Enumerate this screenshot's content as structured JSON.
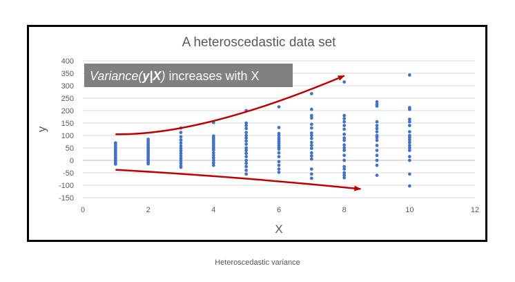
{
  "caption": "Heteroscedastic variance",
  "colors": {
    "points": "#4472C4",
    "arrows": "#C00000",
    "annotation_bg": "#808080",
    "gridlines": "#D9D9D9",
    "text": "#595959"
  },
  "annotation": {
    "italic_prefix": "Variance(",
    "bold_italic_var": "y|X",
    "italic_suffix": ")",
    "rest": " increases with X"
  },
  "chart_data": {
    "type": "scatter",
    "title": "A heteroscedastic data set",
    "xlabel": "X",
    "ylabel": "y",
    "xlim": [
      0,
      12
    ],
    "ylim": [
      -150,
      400
    ],
    "x_ticks": [
      0,
      2,
      4,
      6,
      8,
      10,
      12
    ],
    "y_ticks": [
      400,
      350,
      300,
      250,
      200,
      150,
      100,
      50,
      0,
      -50,
      -100,
      -150
    ],
    "grid": "horizontal",
    "legend": "none",
    "series": [
      {
        "points": [
          [
            1,
            70
          ],
          [
            1,
            62
          ],
          [
            1,
            55
          ],
          [
            1,
            48
          ],
          [
            1,
            42
          ],
          [
            1,
            35
          ],
          [
            1,
            30
          ],
          [
            1,
            25
          ],
          [
            1,
            20
          ],
          [
            1,
            14
          ],
          [
            1,
            8
          ],
          [
            1,
            2
          ],
          [
            1,
            -3
          ],
          [
            1,
            -10
          ],
          [
            1,
            -15
          ],
          [
            2,
            85
          ],
          [
            2,
            78
          ],
          [
            2,
            70
          ],
          [
            2,
            62
          ],
          [
            2,
            55
          ],
          [
            2,
            48
          ],
          [
            2,
            42
          ],
          [
            2,
            36
          ],
          [
            2,
            30
          ],
          [
            2,
            24
          ],
          [
            2,
            18
          ],
          [
            2,
            12
          ],
          [
            2,
            5
          ],
          [
            2,
            -2
          ],
          [
            2,
            -8
          ],
          [
            2,
            -14
          ],
          [
            3,
            130
          ],
          [
            3,
            112
          ],
          [
            3,
            95
          ],
          [
            3,
            82
          ],
          [
            3,
            70
          ],
          [
            3,
            58
          ],
          [
            3,
            48
          ],
          [
            3,
            38
          ],
          [
            3,
            28
          ],
          [
            3,
            18
          ],
          [
            3,
            8
          ],
          [
            3,
            -2
          ],
          [
            3,
            -12
          ],
          [
            3,
            -22
          ],
          [
            3,
            -28
          ],
          [
            4,
            152
          ],
          [
            4,
            98
          ],
          [
            4,
            90
          ],
          [
            4,
            82
          ],
          [
            4,
            74
          ],
          [
            4,
            66
          ],
          [
            4,
            58
          ],
          [
            4,
            50
          ],
          [
            4,
            42
          ],
          [
            4,
            30
          ],
          [
            4,
            20
          ],
          [
            4,
            10
          ],
          [
            4,
            0
          ],
          [
            4,
            -10
          ],
          [
            4,
            -20
          ],
          [
            5,
            200
          ],
          [
            5,
            150
          ],
          [
            5,
            140
          ],
          [
            5,
            128
          ],
          [
            5,
            112
          ],
          [
            5,
            100
          ],
          [
            5,
            90
          ],
          [
            5,
            78
          ],
          [
            5,
            65
          ],
          [
            5,
            50
          ],
          [
            5,
            40
          ],
          [
            5,
            28
          ],
          [
            5,
            15
          ],
          [
            5,
            0
          ],
          [
            5,
            -12
          ],
          [
            5,
            -25
          ],
          [
            5,
            -40
          ],
          [
            5,
            -55
          ],
          [
            6,
            215
          ],
          [
            6,
            132
          ],
          [
            6,
            108
          ],
          [
            6,
            100
          ],
          [
            6,
            90
          ],
          [
            6,
            82
          ],
          [
            6,
            75
          ],
          [
            6,
            68
          ],
          [
            6,
            60
          ],
          [
            6,
            52
          ],
          [
            6,
            45
          ],
          [
            6,
            30
          ],
          [
            6,
            15
          ],
          [
            6,
            -5
          ],
          [
            6,
            -20
          ],
          [
            6,
            -35
          ],
          [
            6,
            -48
          ],
          [
            7,
            268
          ],
          [
            7,
            205
          ],
          [
            7,
            180
          ],
          [
            7,
            170
          ],
          [
            7,
            145
          ],
          [
            7,
            130
          ],
          [
            7,
            110
          ],
          [
            7,
            100
          ],
          [
            7,
            88
          ],
          [
            7,
            72
          ],
          [
            7,
            60
          ],
          [
            7,
            48
          ],
          [
            7,
            30
          ],
          [
            7,
            18
          ],
          [
            7,
            5
          ],
          [
            7,
            -35
          ],
          [
            7,
            -55
          ],
          [
            7,
            -72
          ],
          [
            8,
            315
          ],
          [
            8,
            180
          ],
          [
            8,
            168
          ],
          [
            8,
            155
          ],
          [
            8,
            140
          ],
          [
            8,
            125
          ],
          [
            8,
            105
          ],
          [
            8,
            90
          ],
          [
            8,
            80
          ],
          [
            8,
            62
          ],
          [
            8,
            50
          ],
          [
            8,
            40
          ],
          [
            8,
            20
          ],
          [
            8,
            0
          ],
          [
            8,
            -25
          ],
          [
            8,
            -35
          ],
          [
            8,
            -50
          ],
          [
            8,
            -60
          ],
          [
            8,
            -70
          ],
          [
            9,
            235
          ],
          [
            9,
            225
          ],
          [
            9,
            218
          ],
          [
            9,
            155
          ],
          [
            9,
            140
          ],
          [
            9,
            128
          ],
          [
            9,
            115
          ],
          [
            9,
            100
          ],
          [
            9,
            92
          ],
          [
            9,
            80
          ],
          [
            9,
            60
          ],
          [
            9,
            40
          ],
          [
            9,
            20
          ],
          [
            9,
            0
          ],
          [
            9,
            -20
          ],
          [
            9,
            -60
          ],
          [
            10,
            343
          ],
          [
            10,
            212
          ],
          [
            10,
            205
          ],
          [
            10,
            165
          ],
          [
            10,
            155
          ],
          [
            10,
            140
          ],
          [
            10,
            115
          ],
          [
            10,
            100
          ],
          [
            10,
            92
          ],
          [
            10,
            82
          ],
          [
            10,
            72
          ],
          [
            10,
            60
          ],
          [
            10,
            50
          ],
          [
            10,
            40
          ],
          [
            10,
            15
          ],
          [
            10,
            0
          ],
          [
            10,
            -55
          ],
          [
            10,
            -103
          ]
        ]
      }
    ],
    "annotations": [
      {
        "type": "arrow",
        "direction": "upper envelope",
        "from": [
          1,
          105
        ],
        "to": [
          8,
          340
        ]
      },
      {
        "type": "arrow",
        "direction": "lower envelope",
        "from": [
          1,
          -38
        ],
        "to": [
          8.5,
          -115
        ]
      }
    ]
  }
}
